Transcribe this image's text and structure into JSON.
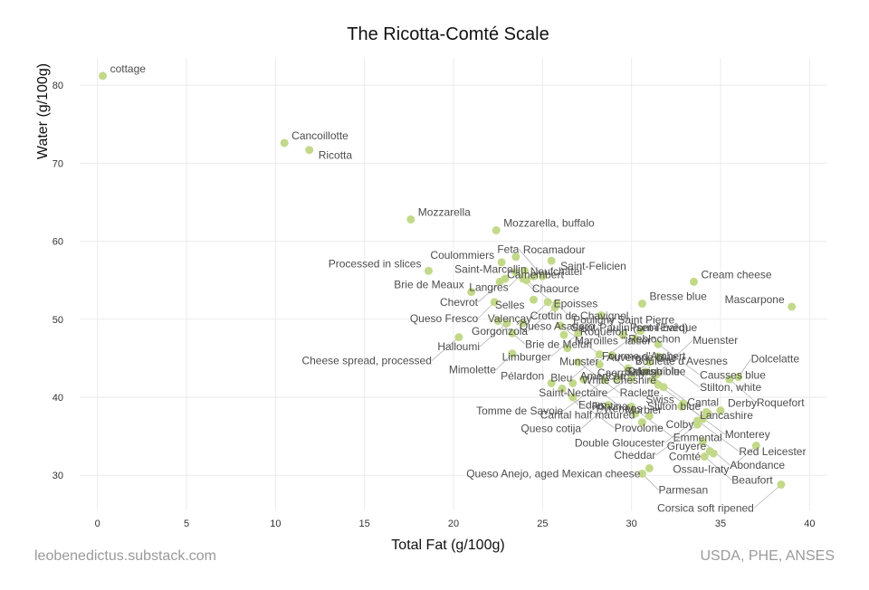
{
  "chart_data": {
    "type": "scatter",
    "title": "The Ricotta-Comté Scale",
    "xlabel": "Total Fat (g/100g)",
    "ylabel": "Water (g/100g)",
    "xlim": [
      -1,
      41
    ],
    "ylim": [
      25.5,
      83.5
    ],
    "xticks": [
      0,
      5,
      10,
      15,
      20,
      25,
      30,
      35,
      40
    ],
    "yticks": [
      30,
      40,
      50,
      60,
      70,
      80
    ],
    "grid": true,
    "legend": "none",
    "point_color": "#c3d98a",
    "caption_left": "leobenedictus.substack.com",
    "caption_right": "USDA, PHE, ANSES",
    "points": [
      {
        "label": "cottage",
        "x": 0.3,
        "y": 81.2
      },
      {
        "label": "Cancoillotte",
        "x": 10.5,
        "y": 72.6
      },
      {
        "label": "Ricotta",
        "x": 11.9,
        "y": 71.7
      },
      {
        "label": "Mozzarella",
        "x": 17.6,
        "y": 62.8
      },
      {
        "label": "Rocamadour",
        "x": 23.5,
        "y": 58.0
      },
      {
        "label": "Mozzarella, buffalo",
        "x": 22.4,
        "y": 61.4
      },
      {
        "label": "Saint-Felicien",
        "x": 25.5,
        "y": 57.5
      },
      {
        "label": "Saint-Marcellin",
        "x": 24.5,
        "y": 55.5
      },
      {
        "label": "Processed in slices",
        "x": 18.6,
        "y": 56.2
      },
      {
        "label": "Coulommiers",
        "x": 22.7,
        "y": 57.3
      },
      {
        "label": "Chaource",
        "x": 23.5,
        "y": 56.0
      },
      {
        "label": "Langres",
        "x": 24.0,
        "y": 56.2
      },
      {
        "label": "Brie de Meaux",
        "x": 21.0,
        "y": 53.5
      },
      {
        "label": "Epoisses",
        "x": 24.1,
        "y": 55.0
      },
      {
        "label": "Feta",
        "x": 25.0,
        "y": 55.5
      },
      {
        "label": "Chevrot",
        "x": 22.9,
        "y": 55.2
      },
      {
        "label": "Camembert",
        "x": 22.6,
        "y": 54.8
      },
      {
        "label": "Neufchâtel",
        "x": 23.9,
        "y": 55.2
      },
      {
        "label": "Cream cheese",
        "x": 33.5,
        "y": 54.8
      },
      {
        "label": "Mascarpone",
        "x": 39.0,
        "y": 51.6
      },
      {
        "label": "Bresse blue",
        "x": 30.6,
        "y": 52.0
      },
      {
        "label": "Selles",
        "x": 24.5,
        "y": 52.5
      },
      {
        "label": "Pouligny Saint Pierre",
        "x": 25.8,
        "y": 52.0
      },
      {
        "label": "Valençay",
        "x": 25.3,
        "y": 52.2
      },
      {
        "label": "Gorgonzola",
        "x": 25.7,
        "y": 51.5
      },
      {
        "label": "Queso Fresco",
        "x": 22.3,
        "y": 52.2
      },
      {
        "label": "Reblochon",
        "x": 28.3,
        "y": 50.5
      },
      {
        "label": "Brie de Melun",
        "x": 22.5,
        "y": 49.8
      },
      {
        "label": "Halloumi",
        "x": 23.0,
        "y": 49.5
      },
      {
        "label": "Crottin de Chavignol",
        "x": 23.9,
        "y": 49.5
      },
      {
        "label": "Fourme d'Ambert",
        "x": 26.0,
        "y": 49.2
      },
      {
        "label": "Munster",
        "x": 30.5,
        "y": 48.5
      },
      {
        "label": "Causses blue",
        "x": 31.5,
        "y": 46.8
      },
      {
        "label": "Roquefort",
        "x": 30.2,
        "y": 47.5
      },
      {
        "label": "Pont-l'Evêque",
        "x": 29.5,
        "y": 48.0
      },
      {
        "label": "Cheese spread, processed",
        "x": 20.3,
        "y": 47.7
      },
      {
        "label": "Queso Asadero",
        "x": 23.3,
        "y": 48.2
      },
      {
        "label": "Saint-Paulin (semi-hard)",
        "x": 26.2,
        "y": 48.0
      },
      {
        "label": "Limburger",
        "x": 27.0,
        "y": 48.2
      },
      {
        "label": "Mimolette",
        "x": 23.3,
        "y": 45.6
      },
      {
        "label": "Maroilles \"laitier\"",
        "x": 26.4,
        "y": 46.3
      },
      {
        "label": "Danish blue",
        "x": 28.9,
        "y": 45.4
      },
      {
        "label": "Bleu",
        "x": 28.2,
        "y": 45.5
      },
      {
        "label": "Stilton, white",
        "x": 31.5,
        "y": 45.2
      },
      {
        "label": "Saint-Nectaire",
        "x": 31.0,
        "y": 44.5
      },
      {
        "label": "Raclette",
        "x": 27.0,
        "y": 44.5
      },
      {
        "label": "Auvergne blue",
        "x": 28.2,
        "y": 44.2
      },
      {
        "label": "Boulette d'Avesnes",
        "x": 29.8,
        "y": 43.7
      },
      {
        "label": "Cantal",
        "x": 30.8,
        "y": 43.3
      },
      {
        "label": "Muenster",
        "x": 31.4,
        "y": 42.9
      },
      {
        "label": "Pélardon",
        "x": 25.5,
        "y": 41.8
      },
      {
        "label": "Morbier",
        "x": 27.3,
        "y": 42.3
      },
      {
        "label": "Tomme de Savoie",
        "x": 28.5,
        "y": 42.2
      },
      {
        "label": "Salers",
        "x": 29.2,
        "y": 42.4
      },
      {
        "label": "Laguiole",
        "x": 30.0,
        "y": 42.4
      },
      {
        "label": "Caerphilly",
        "x": 31.2,
        "y": 42.2
      },
      {
        "label": "Dolcelatte",
        "x": 36.0,
        "y": 42.6
      },
      {
        "label": "Roquefort",
        "x": 35.5,
        "y": 42.3
      },
      {
        "label": "Lancashire",
        "x": 31.5,
        "y": 41.6
      },
      {
        "label": "White Cheshire",
        "x": 31.8,
        "y": 41.3
      },
      {
        "label": "American",
        "x": 26.7,
        "y": 41.8
      },
      {
        "label": "Edam",
        "x": 26.1,
        "y": 41.1
      },
      {
        "label": "Provolone",
        "x": 26.7,
        "y": 40.0
      },
      {
        "label": "Queso cotija",
        "x": 28.7,
        "y": 39.0
      },
      {
        "label": "Emmental",
        "x": 30.0,
        "y": 38.8
      },
      {
        "label": "Monterey",
        "x": 32.9,
        "y": 39.2
      },
      {
        "label": "Swiss",
        "x": 32.8,
        "y": 38.8
      },
      {
        "label": "Derby",
        "x": 35.0,
        "y": 38.3
      },
      {
        "label": "Double Gloucester",
        "x": 34.2,
        "y": 38.1
      },
      {
        "label": "Stilton blue",
        "x": 34.3,
        "y": 37.9
      },
      {
        "label": "Fontina",
        "x": 30.2,
        "y": 37.9
      },
      {
        "label": "Pyrénées",
        "x": 31.0,
        "y": 37.6
      },
      {
        "label": "Colby",
        "x": 34.0,
        "y": 37.2
      },
      {
        "label": "Red Leicester",
        "x": 33.7,
        "y": 37.0
      },
      {
        "label": "Cantal half matured",
        "x": 30.6,
        "y": 36.8
      },
      {
        "label": "Cheddar",
        "x": 33.7,
        "y": 36.5
      },
      {
        "label": "Abondance",
        "x": 34.0,
        "y": 34.3
      },
      {
        "label": "Ossau-Iraty",
        "x": 37.0,
        "y": 33.8
      },
      {
        "label": "Comté",
        "x": 34.4,
        "y": 33.1
      },
      {
        "label": "Beaufort",
        "x": 34.1,
        "y": 32.4
      },
      {
        "label": "Queso Anejo, aged Mexican cheese",
        "x": 31.0,
        "y": 30.9
      },
      {
        "label": "Gruyere",
        "x": 34.6,
        "y": 32.8
      },
      {
        "label": "Parmesan",
        "x": 30.6,
        "y": 30.2
      },
      {
        "label": "Corsica soft ripened",
        "x": 38.4,
        "y": 28.8
      }
    ]
  }
}
